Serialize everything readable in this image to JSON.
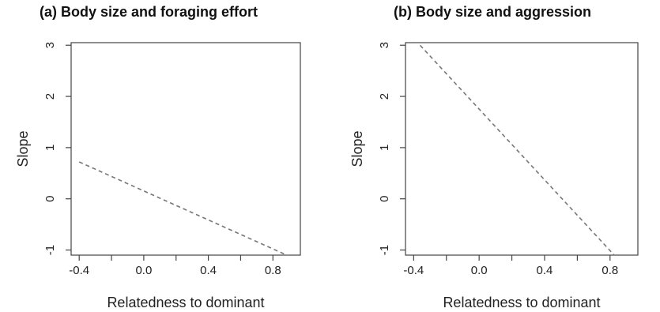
{
  "chart_data": [
    {
      "type": "line",
      "title": "(a) Body size and foraging effort",
      "xlabel": "Relatedness to dominant",
      "ylabel": "Slope",
      "xlim": [
        -0.45,
        0.97
      ],
      "ylim": [
        -1.1,
        3.05
      ],
      "xticks": [
        -0.4,
        0.0,
        0.4,
        0.8
      ],
      "xtick_labels": [
        "-0.4",
        "0.0",
        "0.4",
        "0.8"
      ],
      "xticks_minor": [
        -0.2,
        0.2,
        0.6
      ],
      "yticks": [
        -1,
        0,
        1,
        2,
        3
      ],
      "ytick_labels": [
        "-1",
        "0",
        "1",
        "2",
        "3"
      ],
      "grid": false,
      "series": [
        {
          "style": "dashed",
          "color": "#777777",
          "x": [
            -0.4,
            0.9
          ],
          "y": [
            0.72,
            -1.12
          ]
        }
      ]
    },
    {
      "type": "line",
      "title": "(b) Body size and aggression",
      "xlabel": "Relatedness to dominant",
      "ylabel": "Slope",
      "xlim": [
        -0.45,
        0.97
      ],
      "ylim": [
        -1.1,
        3.05
      ],
      "xticks": [
        -0.4,
        0.0,
        0.4,
        0.8
      ],
      "xtick_labels": [
        "-0.4",
        "0.0",
        "0.4",
        "0.8"
      ],
      "xticks_minor": [
        -0.2,
        0.2,
        0.6
      ],
      "yticks": [
        -1,
        0,
        1,
        2,
        3
      ],
      "ytick_labels": [
        "-1",
        "0",
        "1",
        "2",
        "3"
      ],
      "grid": false,
      "series": [
        {
          "style": "dashed",
          "color": "#777777",
          "x": [
            -0.39,
            0.84
          ],
          "y": [
            3.1,
            -1.15
          ]
        }
      ]
    }
  ]
}
